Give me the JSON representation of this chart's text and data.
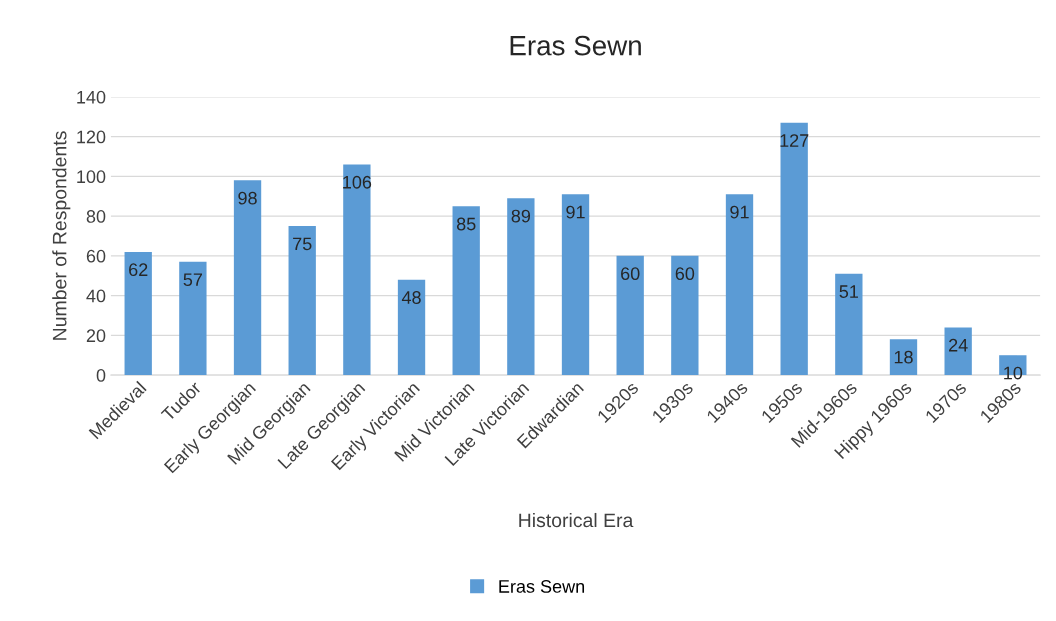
{
  "chart_data": {
    "type": "bar",
    "title": "Eras Sewn",
    "xlabel": "Historical Era",
    "ylabel": "Number of Respondents",
    "categories": [
      "Medieval",
      "Tudor",
      "Early Georgian",
      "Mid Georgian",
      "Late Georgian",
      "Early Victorian",
      "Mid Victorian",
      "Late Victorian",
      "Edwardian",
      "1920s",
      "1930s",
      "1940s",
      "1950s",
      "Mid-1960s",
      "Hippy 1960s",
      "1970s",
      "1980s"
    ],
    "series": [
      {
        "name": "Eras Sewn",
        "color": "#5b9bd5",
        "values": [
          62,
          57,
          98,
          75,
          106,
          48,
          85,
          89,
          91,
          60,
          60,
          91,
          127,
          51,
          18,
          24,
          10
        ]
      }
    ],
    "ylim": [
      0,
      140
    ],
    "yticks": [
      0,
      20,
      40,
      60,
      80,
      100,
      120,
      140
    ],
    "grid": "y",
    "legend": "bottom",
    "data_labels": true
  }
}
